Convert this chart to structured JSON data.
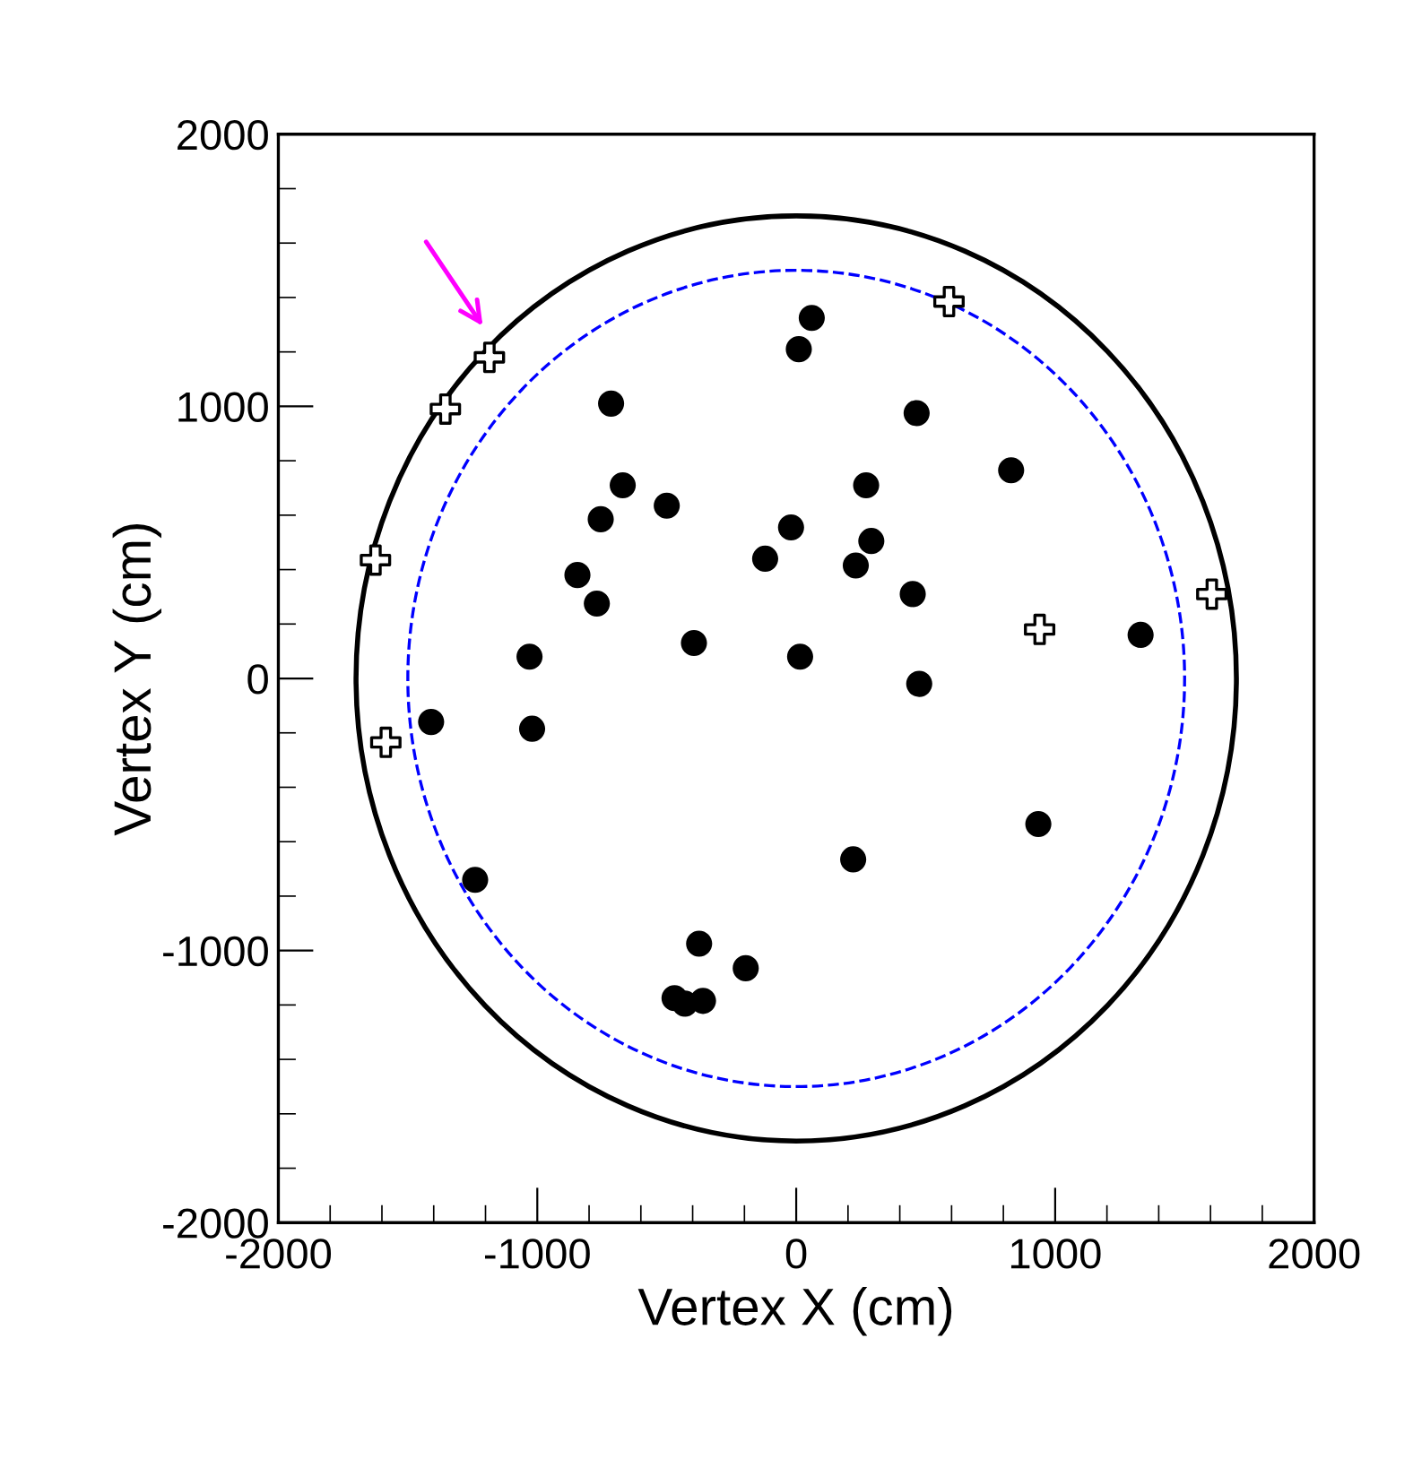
{
  "chart_data": {
    "type": "scatter",
    "xlabel": "Vertex X (cm)",
    "ylabel": "Vertex Y (cm)",
    "xlim": [
      -2000,
      2000
    ],
    "ylim": [
      -2000,
      2000
    ],
    "xticks": [
      -2000,
      -1000,
      0,
      1000,
      2000
    ],
    "yticks": [
      -2000,
      -1000,
      0,
      1000,
      2000
    ],
    "grid": false,
    "legend": false,
    "series": [
      {
        "color": "#000000",
        "marker": "circle",
        "x": [
          10,
          60,
          465,
          830,
          -715,
          -670,
          -755,
          -500,
          -845,
          -770,
          -120,
          -20,
          270,
          290,
          230,
          450,
          475,
          15,
          -395,
          -1030,
          -1020,
          -1410,
          1330,
          935,
          220,
          -1240,
          -375,
          -195,
          -470,
          -430,
          -360
        ],
        "values": [
          1210,
          1325,
          975,
          765,
          1010,
          710,
          585,
          635,
          380,
          275,
          440,
          555,
          710,
          505,
          415,
          310,
          -20,
          80,
          130,
          80,
          -185,
          -160,
          160,
          -535,
          -665,
          -740,
          -975,
          -1065,
          -1175,
          -1195,
          -1185
        ]
      },
      {
        "color": "#ffffff",
        "marker": "cross",
        "x": [
          -1185,
          -1355,
          -1625,
          590,
          940,
          1605,
          -1585
        ],
        "values": [
          1180,
          990,
          435,
          1385,
          180,
          310,
          -235
        ]
      }
    ]
  }
}
